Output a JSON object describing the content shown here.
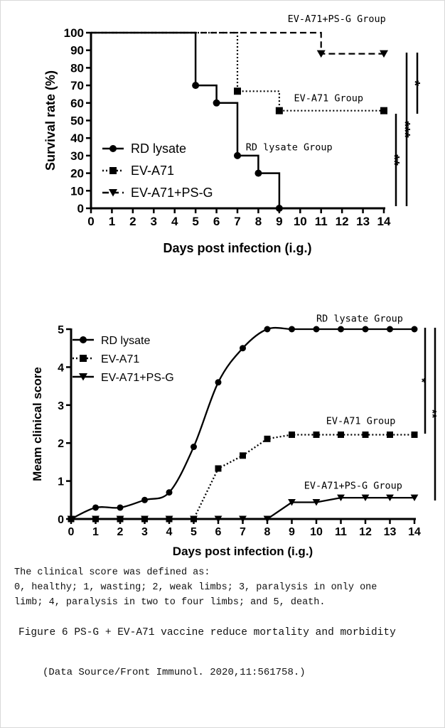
{
  "chart_data": [
    {
      "type": "line",
      "subtype": "step",
      "title": "",
      "xlabel": "Days post infection (i.g.)",
      "ylabel": "Survival rate (%)",
      "xlim": [
        0,
        14
      ],
      "ylim": [
        0,
        100
      ],
      "xticks": [
        "0",
        "1",
        "2",
        "3",
        "4",
        "5",
        "6",
        "7",
        "8",
        "9",
        "10",
        "11",
        "12",
        "13",
        "14"
      ],
      "yticks": [
        "0",
        "10",
        "20",
        "30",
        "40",
        "50",
        "60",
        "70",
        "80",
        "90",
        "100"
      ],
      "legend_position": "bottom-left",
      "series": [
        {
          "name": "RD lysate",
          "style": "solid",
          "marker": "circle",
          "points": [
            [
              0,
              100
            ],
            [
              5,
              100
            ],
            [
              5,
              70
            ],
            [
              6,
              70
            ],
            [
              6,
              60
            ],
            [
              7,
              60
            ],
            [
              7,
              30
            ],
            [
              8,
              30
            ],
            [
              8,
              20
            ],
            [
              9,
              20
            ],
            [
              9,
              0
            ]
          ],
          "markers": [
            [
              5,
              70
            ],
            [
              6,
              60
            ],
            [
              7,
              30
            ],
            [
              8,
              20
            ],
            [
              9,
              0
            ]
          ]
        },
        {
          "name": "EV-A71",
          "style": "dotted",
          "marker": "square",
          "points": [
            [
              0,
              100
            ],
            [
              7,
              100
            ],
            [
              7,
              66.7
            ],
            [
              9,
              66.7
            ],
            [
              9,
              55.6
            ],
            [
              14,
              55.6
            ]
          ],
          "markers": [
            [
              7,
              66.7
            ],
            [
              9,
              55.6
            ],
            [
              14,
              55.6
            ]
          ]
        },
        {
          "name": "EV-A71+PS-G",
          "style": "dashed",
          "marker": "triangle-down",
          "points": [
            [
              0,
              100
            ],
            [
              11,
              100
            ],
            [
              11,
              88
            ],
            [
              14,
              88
            ]
          ],
          "markers": [
            [
              11,
              88
            ],
            [
              14,
              88
            ]
          ]
        }
      ],
      "annotations": [
        {
          "text": "EV-A71+PS-G Group",
          "x": 9.4,
          "y": 106
        },
        {
          "text": "EV-A71 Group",
          "x": 9.7,
          "y": 61
        },
        {
          "text": "RD lysate Group",
          "x": 7.4,
          "y": 33
        }
      ],
      "significance": [
        "*",
        "***",
        "**"
      ]
    },
    {
      "type": "line",
      "title": "",
      "xlabel": "Days post infection (i.g.)",
      "ylabel": "Meam clinical score",
      "xlim": [
        0,
        14
      ],
      "ylim": [
        0,
        5
      ],
      "xticks": [
        "0",
        "1",
        "2",
        "3",
        "4",
        "5",
        "6",
        "7",
        "8",
        "9",
        "10",
        "11",
        "12",
        "13",
        "14"
      ],
      "yticks": [
        "0",
        "1",
        "2",
        "3",
        "4",
        "5"
      ],
      "legend_position": "top-left",
      "x": [
        0,
        1,
        2,
        3,
        4,
        5,
        6,
        7,
        8,
        9,
        10,
        11,
        12,
        13,
        14
      ],
      "series": [
        {
          "name": "RD lysate",
          "style": "solid",
          "marker": "circle",
          "smooth": true,
          "values": [
            0,
            0.3,
            0.3,
            0.5,
            0.7,
            1.9,
            3.6,
            4.5,
            5,
            5,
            5,
            5,
            5,
            5,
            5
          ]
        },
        {
          "name": "EV-A71",
          "style": "dotted",
          "marker": "square",
          "values": [
            0,
            0,
            0,
            0,
            0,
            0,
            1.33,
            1.67,
            2.11,
            2.22,
            2.22,
            2.22,
            2.22,
            2.22,
            2.22
          ]
        },
        {
          "name": "EV-A71+PS-G",
          "style": "solid",
          "marker": "triangle-down",
          "values": [
            0,
            0,
            0,
            0,
            0,
            0,
            0,
            0,
            0,
            0.44,
            0.44,
            0.56,
            0.56,
            0.56,
            0.56
          ]
        }
      ],
      "annotations": [
        {
          "text": "RD lysate Group",
          "x": 10,
          "y": 5.2
        },
        {
          "text": "EV-A71 Group",
          "x": 10.4,
          "y": 2.5
        },
        {
          "text": "EV-A71+PS-G Group",
          "x": 9.5,
          "y": 0.8
        }
      ],
      "significance": [
        "*",
        "**"
      ]
    }
  ],
  "captions": {
    "score_definition": "The clinical score was defined as:",
    "score_line1": "0, healthy; 1, wasting; 2, weak limbs; 3, paralysis in only one",
    "score_line2": "limb; 4, paralysis in two to four limbs; and 5, death.",
    "figure_title": "Figure 6   PS-G + EV-A71 vaccine reduce mortality and morbidity",
    "source": "(Data Source/Front Immunol. 2020,11:561758.)"
  }
}
